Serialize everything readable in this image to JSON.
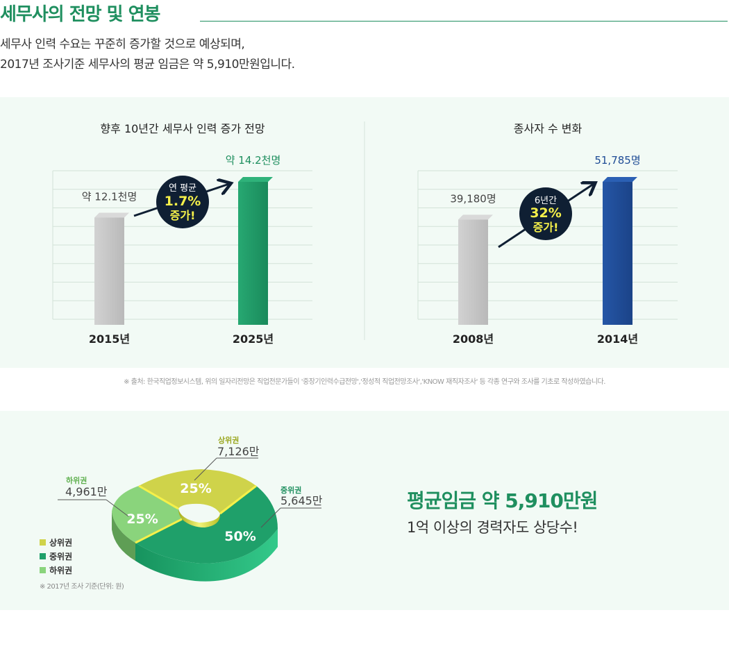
{
  "section_title": "세무사의 전망 및 연봉",
  "intro_line1": "세무사 인력 수요는 꾸준히 증가할 것으로 예상되며,",
  "intro_line2": "2017년 조사기준 세무사의 평균 임금은 약 5,910만원입니다.",
  "source_note": "※ 출처: 한국직업정보시스템, 위의 일자리전망은 직업전문가들이 '중장기인력수급전망','정성적 직업전망조사','KNOW 재직자조사' 등 각종 연구와 조사를 기초로 작성하였습니다.",
  "colors": {
    "brand_green": "#1f8f5f",
    "bar_gray": "#c3c3c3",
    "bar_green": "#1f9966",
    "bar_blue": "#1f4c96",
    "pie_upper": "#cfd34a",
    "pie_middle": "#1fa06a",
    "pie_lower": "#8ad47c",
    "bubble": "#0f1f33",
    "bubble_highlight": "#f5f04a"
  },
  "chart_data": [
    {
      "type": "bar",
      "title": "향후 10년간 세무사 인력 증가 전망",
      "categories": [
        "2015년",
        "2025년"
      ],
      "values": [
        12.1,
        14.2
      ],
      "value_labels": [
        "약 12.1천명",
        "약 14.2천명"
      ],
      "ylim": [
        5.8,
        14.2
      ],
      "grid": true,
      "callout": {
        "line1": "연 평균",
        "line2": "1.7%",
        "line3": "증가!"
      }
    },
    {
      "type": "bar",
      "title": "종사자 수 변화",
      "categories": [
        "2008년",
        "2014년"
      ],
      "values": [
        39180,
        51785
      ],
      "value_labels": [
        "39,180명",
        "51,785명"
      ],
      "ylim": [
        4000,
        51785
      ],
      "grid": true,
      "callout": {
        "line1": "6년간",
        "line2": "32%",
        "line3": "증가!"
      }
    },
    {
      "type": "pie",
      "categories": [
        "상위권",
        "중위권",
        "하위권"
      ],
      "values": [
        25,
        50,
        25
      ],
      "percent_labels": [
        "25%",
        "50%",
        "25%"
      ],
      "amount_labels": [
        "7,126만",
        "5,645만",
        "4,961만"
      ],
      "legend": [
        "상위권",
        "중위권",
        "하위권"
      ],
      "note": "※ 2017년 조사 기준(단위: 원)"
    }
  ],
  "summary": {
    "headline": "평균임금 약 5,910만원",
    "subline": "1억 이상의 경력자도 상당수!"
  }
}
